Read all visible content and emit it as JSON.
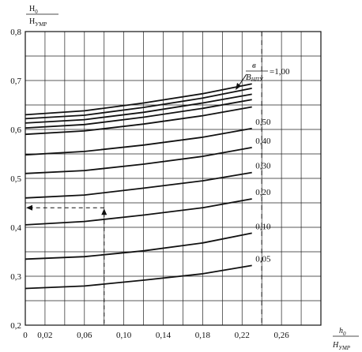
{
  "chart_data": {
    "type": "line",
    "ylabel_num": "H",
    "ylabel_num_sub": "0",
    "ylabel_den": "H",
    "ylabel_den_sub": "УМР",
    "xlabel_num": "h",
    "xlabel_num_sub": "0",
    "xlabel_den": "H",
    "xlabel_den_sub": "УМР",
    "xlim": [
      0,
      0.3
    ],
    "ylim": [
      0.2,
      0.8
    ],
    "x_ticks": [
      0,
      0.02,
      0.06,
      0.1,
      0.14,
      0.18,
      0.22,
      0.26
    ],
    "x_tick_labels": [
      "0",
      "0,02",
      "0,06",
      "0,10",
      "0,14",
      "0,18",
      "0,22",
      "0,26"
    ],
    "y_ticks": [
      0.2,
      0.3,
      0.4,
      0.5,
      0.6,
      0.7,
      0.8
    ],
    "y_tick_labels": [
      "0,2",
      "0,3",
      "0,4",
      "0,5",
      "0,6",
      "0,7",
      "0,8"
    ],
    "vertical_dashed_x": 0.24,
    "legend_frac_num": "в",
    "legend_frac_den": "B",
    "legend_frac_den_sub": "НПУ",
    "legend_eq": "=1,00",
    "series": [
      {
        "name": "0,05",
        "x": [
          0,
          0.06,
          0.12,
          0.18,
          0.23
        ],
        "y": [
          0.275,
          0.28,
          0.292,
          0.305,
          0.322
        ]
      },
      {
        "name": "0,10",
        "x": [
          0,
          0.06,
          0.12,
          0.18,
          0.23
        ],
        "y": [
          0.335,
          0.34,
          0.352,
          0.368,
          0.388
        ]
      },
      {
        "name": "0,20",
        "x": [
          0,
          0.06,
          0.12,
          0.18,
          0.23
        ],
        "y": [
          0.405,
          0.412,
          0.425,
          0.44,
          0.458
        ]
      },
      {
        "name": "0,30",
        "x": [
          0,
          0.06,
          0.12,
          0.18,
          0.23
        ],
        "y": [
          0.46,
          0.466,
          0.48,
          0.495,
          0.512
        ]
      },
      {
        "name": "0,40",
        "x": [
          0,
          0.06,
          0.12,
          0.18,
          0.23
        ],
        "y": [
          0.51,
          0.516,
          0.529,
          0.545,
          0.563
        ]
      },
      {
        "name": "0,50",
        "x": [
          0,
          0.06,
          0.12,
          0.18,
          0.23
        ],
        "y": [
          0.548,
          0.555,
          0.568,
          0.584,
          0.602
        ]
      },
      {
        "name": "",
        "x": [
          0,
          0.06,
          0.12,
          0.18,
          0.23
        ],
        "y": [
          0.59,
          0.597,
          0.611,
          0.628,
          0.646
        ]
      },
      {
        "name": "",
        "x": [
          0,
          0.06,
          0.12,
          0.18,
          0.23
        ],
        "y": [
          0.603,
          0.61,
          0.625,
          0.643,
          0.661
        ]
      },
      {
        "name": "",
        "x": [
          0,
          0.06,
          0.12,
          0.18,
          0.23
        ],
        "y": [
          0.613,
          0.62,
          0.635,
          0.654,
          0.672
        ]
      },
      {
        "name": "",
        "x": [
          0,
          0.06,
          0.12,
          0.18,
          0.23
        ],
        "y": [
          0.622,
          0.629,
          0.645,
          0.664,
          0.684
        ]
      },
      {
        "name": "1,00",
        "x": [
          0,
          0.06,
          0.12,
          0.18,
          0.23
        ],
        "y": [
          0.63,
          0.638,
          0.654,
          0.673,
          0.693
        ]
      }
    ],
    "example_path": {
      "x": 0.08,
      "y": 0.44
    }
  }
}
